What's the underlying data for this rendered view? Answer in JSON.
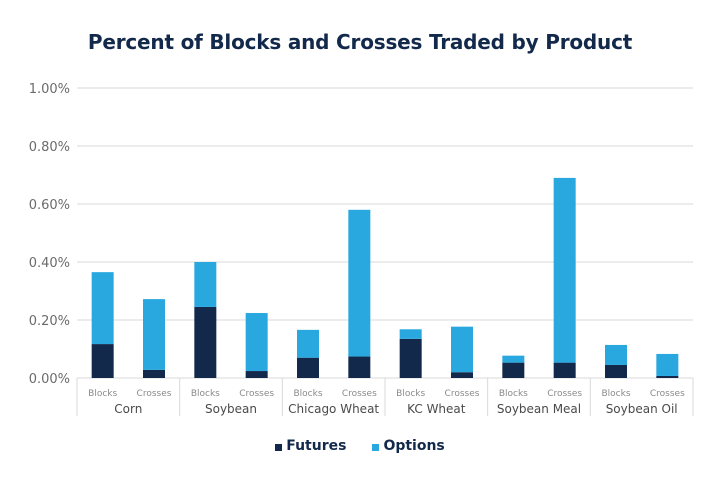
{
  "chart_data": {
    "type": "bar",
    "stacked": true,
    "title": "Percent of Blocks and Crosses Traded by Product",
    "xlabel": "",
    "ylabel": "",
    "ylim": [
      0,
      1.0
    ],
    "yticks": [
      "0.00%",
      "0.20%",
      "0.40%",
      "0.60%",
      "0.80%",
      "1.00%"
    ],
    "ytick_values": [
      0,
      0.2,
      0.4,
      0.6,
      0.8,
      1.0
    ],
    "grid": true,
    "groups": [
      "Corn",
      "Soybean",
      "Chicago Wheat",
      "KC Wheat",
      "Soybean Meal",
      "Soybean Oil"
    ],
    "subcategories": [
      "Blocks",
      "Crosses"
    ],
    "series": [
      {
        "name": "Futures",
        "color": "#13294b",
        "values": [
          [
            0.117,
            0.028
          ],
          [
            0.245,
            0.024
          ],
          [
            0.07,
            0.074
          ],
          [
            0.135,
            0.02
          ],
          [
            0.053,
            0.053
          ],
          [
            0.045,
            0.007
          ]
        ]
      },
      {
        "name": "Options",
        "color": "#29a8e0",
        "values": [
          [
            0.248,
            0.244
          ],
          [
            0.155,
            0.2
          ],
          [
            0.096,
            0.506
          ],
          [
            0.033,
            0.157
          ],
          [
            0.024,
            0.637
          ],
          [
            0.069,
            0.076
          ]
        ]
      }
    ],
    "legend_position": "bottom-center"
  }
}
